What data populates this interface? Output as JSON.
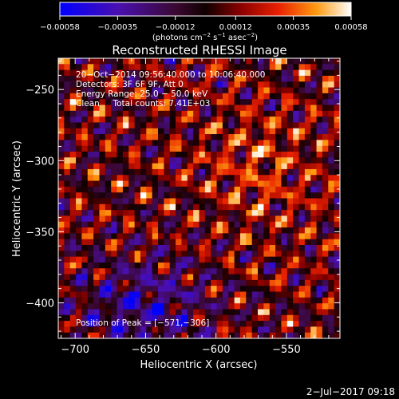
{
  "chart_data": {
    "type": "heatmap",
    "title": "Reconstructed RHESSI Image",
    "xlabel": "Heliocentric X (arcsec)",
    "ylabel": "Heliocentric Y (arcsec)",
    "xlim": [
      -712,
      -512
    ],
    "ylim": [
      -425,
      -228
    ],
    "x_ticks": [
      -700,
      -650,
      -600,
      -550
    ],
    "x_tick_labels": [
      "−700",
      "−650",
      "−600",
      "−550"
    ],
    "y_ticks": [
      -250,
      -300,
      -350,
      -400
    ],
    "y_tick_labels": [
      "−250",
      "−300",
      "−350",
      "−400"
    ],
    "colorbar": {
      "range": [
        -0.00058,
        0.00058
      ],
      "ticks": [
        -0.00058,
        -0.00035,
        -0.00012,
        0.00012,
        0.00035,
        0.00058
      ],
      "tick_labels": [
        "−0.00058",
        "−0.00035",
        "−0.00012",
        "0.00012",
        "0.00035",
        "0.00058"
      ],
      "unit_prefix": "(photons cm",
      "unit_exp1": "−2",
      "unit_mid": " s",
      "unit_exp2": "−1",
      "unit_mid2": " asec",
      "unit_exp3": "−2",
      "unit_suffix": ")"
    },
    "annotations": [
      "20−Oct−2014 09:56:40.000 to 10:06:40.000",
      "Detectors: 3F 6F 9F, Att 0",
      "Energy Range: 25.0 − 50.0 keV",
      "Clean     Total counts: 7.41E+03"
    ],
    "peak_label": "Position of Peak = [−571,−306]",
    "peak": [
      -571,
      -306
    ],
    "grid": false
  },
  "footer": {
    "date": "2−Jul−2017 09:18"
  }
}
